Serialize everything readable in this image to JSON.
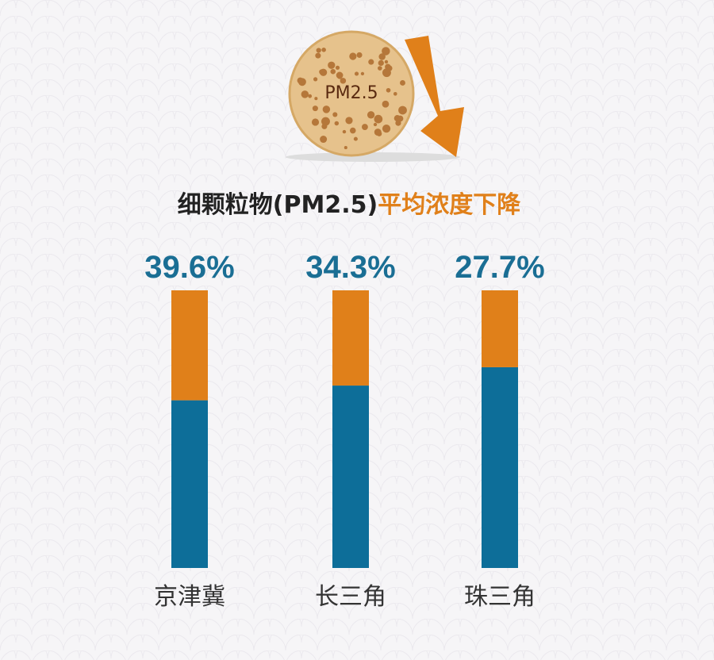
{
  "chart_data": {
    "type": "stacked_bar",
    "badge": "PM2.5",
    "title_parts": [
      "细颗粒物(PM2.5)",
      "平均浓度下降"
    ],
    "categories": [
      "京津冀",
      "长三角",
      "珠三角"
    ],
    "series": [
      {
        "color": "#0d6e99",
        "values": [
          60.4,
          65.7,
          72.3
        ]
      },
      {
        "color": "#e0801a",
        "values": [
          39.6,
          34.3,
          27.7
        ],
        "value_labels": [
          "39.6%",
          "34.3%",
          "27.7%"
        ]
      }
    ],
    "ylim": [
      0,
      100
    ]
  }
}
